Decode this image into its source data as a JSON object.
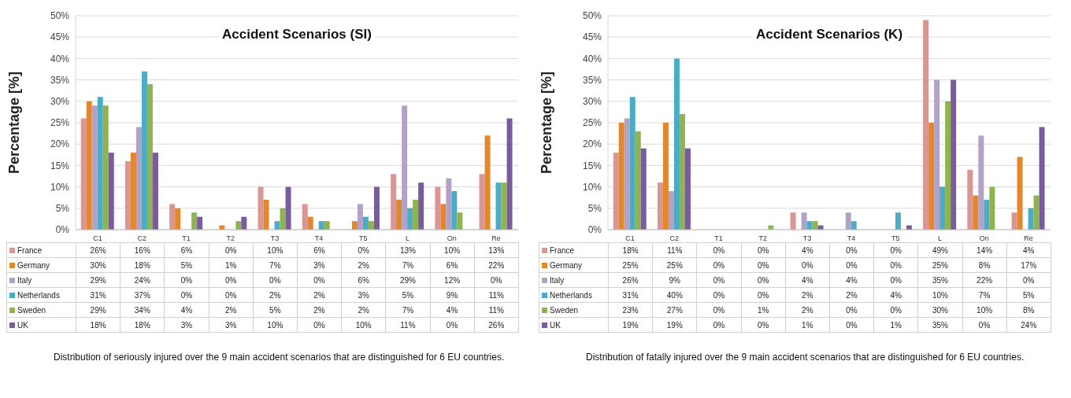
{
  "chart_data": [
    {
      "type": "bar",
      "title": "Accident  Scenarios  (SI)",
      "ylabel": "Percentage [%]",
      "categories": [
        "C1",
        "C2",
        "T1",
        "T2",
        "T3",
        "T4",
        "T5",
        "L",
        "On",
        "Re"
      ],
      "series": [
        {
          "name": "France",
          "color": "#d99694",
          "values": [
            26,
            16,
            6,
            0,
            10,
            6,
            0,
            13,
            10,
            13
          ],
          "value_labels": [
            "26%",
            "16%",
            "6%",
            "0%",
            "10%",
            "6%",
            "0%",
            "13%",
            "10%",
            "13%"
          ]
        },
        {
          "name": "Germany",
          "color": "#e3872d",
          "values": [
            30,
            18,
            5,
            1,
            7,
            3,
            2,
            7,
            6,
            22
          ],
          "value_labels": [
            "30%",
            "18%",
            "5%",
            "1%",
            "7%",
            "3%",
            "2%",
            "7%",
            "6%",
            "22%"
          ]
        },
        {
          "name": "Italy",
          "color": "#b3a2c7",
          "values": [
            29,
            24,
            0,
            0,
            0,
            0,
            6,
            29,
            12,
            0
          ],
          "value_labels": [
            "29%",
            "24%",
            "0%",
            "0%",
            "0%",
            "0%",
            "6%",
            "29%",
            "12%",
            "0%"
          ]
        },
        {
          "name": "Netherlands",
          "color": "#4bacc6",
          "values": [
            31,
            37,
            0,
            0,
            2,
            2,
            3,
            5,
            9,
            11
          ],
          "value_labels": [
            "31%",
            "37%",
            "0%",
            "0%",
            "2%",
            "2%",
            "3%",
            "5%",
            "9%",
            "11%"
          ]
        },
        {
          "name": "Sweden",
          "color": "#8eb44f",
          "values": [
            29,
            34,
            4,
            2,
            5,
            2,
            2,
            7,
            4,
            11
          ],
          "value_labels": [
            "29%",
            "34%",
            "4%",
            "2%",
            "5%",
            "2%",
            "2%",
            "7%",
            "4%",
            "11%"
          ]
        },
        {
          "name": "UK",
          "color": "#7a5c9e",
          "values": [
            18,
            18,
            3,
            3,
            10,
            0,
            10,
            11,
            0,
            26
          ],
          "value_labels": [
            "18%",
            "18%",
            "3%",
            "3%",
            "10%",
            "0%",
            "10%",
            "11%",
            "0%",
            "26%"
          ]
        }
      ],
      "ylim": [
        0,
        50
      ],
      "yticks": [
        {
          "value": 0,
          "label": "0%"
        },
        {
          "value": 5,
          "label": "5%"
        },
        {
          "value": 10,
          "label": "10%"
        },
        {
          "value": 15,
          "label": "15%"
        },
        {
          "value": 20,
          "label": "20%"
        },
        {
          "value": 25,
          "label": "25%"
        },
        {
          "value": 30,
          "label": "30%"
        },
        {
          "value": 35,
          "label": "35%"
        },
        {
          "value": 40,
          "label": "40%"
        },
        {
          "value": 45,
          "label": "45%"
        },
        {
          "value": 50,
          "label": "50%"
        }
      ],
      "grid": "y",
      "legend": "bottom",
      "annotations": [
        "Distribution of seriously injured over the 9 main accident scenarios that are distinguished for 6 EU countries."
      ]
    },
    {
      "type": "bar",
      "title": "Accident  Scenarios  (K)",
      "ylabel": "Percentage [%]",
      "categories": [
        "C1",
        "C2",
        "T1",
        "T2",
        "T3",
        "T4",
        "T5",
        "L",
        "On",
        "Re"
      ],
      "series": [
        {
          "name": "France",
          "color": "#d99694",
          "values": [
            18,
            11,
            0,
            0,
            4,
            0,
            0,
            49,
            14,
            4
          ],
          "value_labels": [
            "18%",
            "11%",
            "0%",
            "0%",
            "4%",
            "0%",
            "0%",
            "49%",
            "14%",
            "4%"
          ]
        },
        {
          "name": "Germany",
          "color": "#e3872d",
          "values": [
            25,
            25,
            0,
            0,
            0,
            0,
            0,
            25,
            8,
            17
          ],
          "value_labels": [
            "25%",
            "25%",
            "0%",
            "0%",
            "0%",
            "0%",
            "0%",
            "25%",
            "8%",
            "17%"
          ]
        },
        {
          "name": "Italy",
          "color": "#b3a2c7",
          "values": [
            26,
            9,
            0,
            0,
            4,
            4,
            0,
            35,
            22,
            0
          ],
          "value_labels": [
            "26%",
            "9%",
            "0%",
            "0%",
            "4%",
            "4%",
            "0%",
            "35%",
            "22%",
            "0%"
          ]
        },
        {
          "name": "Netherlands",
          "color": "#4bacc6",
          "values": [
            31,
            40,
            0,
            0,
            2,
            2,
            4,
            10,
            7,
            5
          ],
          "value_labels": [
            "31%",
            "40%",
            "0%",
            "0%",
            "2%",
            "2%",
            "4%",
            "10%",
            "7%",
            "5%"
          ]
        },
        {
          "name": "Sweden",
          "color": "#8eb44f",
          "values": [
            23,
            27,
            0,
            1,
            2,
            0,
            0,
            30,
            10,
            8
          ],
          "value_labels": [
            "23%",
            "27%",
            "0%",
            "1%",
            "2%",
            "0%",
            "0%",
            "30%",
            "10%",
            "8%"
          ]
        },
        {
          "name": "UK",
          "color": "#7a5c9e",
          "values": [
            19,
            19,
            0,
            0,
            1,
            0,
            1,
            35,
            0,
            24
          ],
          "value_labels": [
            "19%",
            "19%",
            "0%",
            "0%",
            "1%",
            "0%",
            "1%",
            "35%",
            "0%",
            "24%"
          ]
        }
      ],
      "ylim": [
        0,
        50
      ],
      "yticks": [
        {
          "value": 0,
          "label": "0%"
        },
        {
          "value": 5,
          "label": "5%"
        },
        {
          "value": 10,
          "label": "10%"
        },
        {
          "value": 15,
          "label": "15%"
        },
        {
          "value": 20,
          "label": "20%"
        },
        {
          "value": 25,
          "label": "25%"
        },
        {
          "value": 30,
          "label": "30%"
        },
        {
          "value": 35,
          "label": "35%"
        },
        {
          "value": 40,
          "label": "40%"
        },
        {
          "value": 45,
          "label": "45%"
        },
        {
          "value": 50,
          "label": "50%"
        }
      ],
      "grid": "y",
      "legend": "bottom",
      "annotations": [
        "Distribution of fatally injured over the 9 main accident scenarios that are distinguished for 6 EU countries."
      ]
    }
  ]
}
